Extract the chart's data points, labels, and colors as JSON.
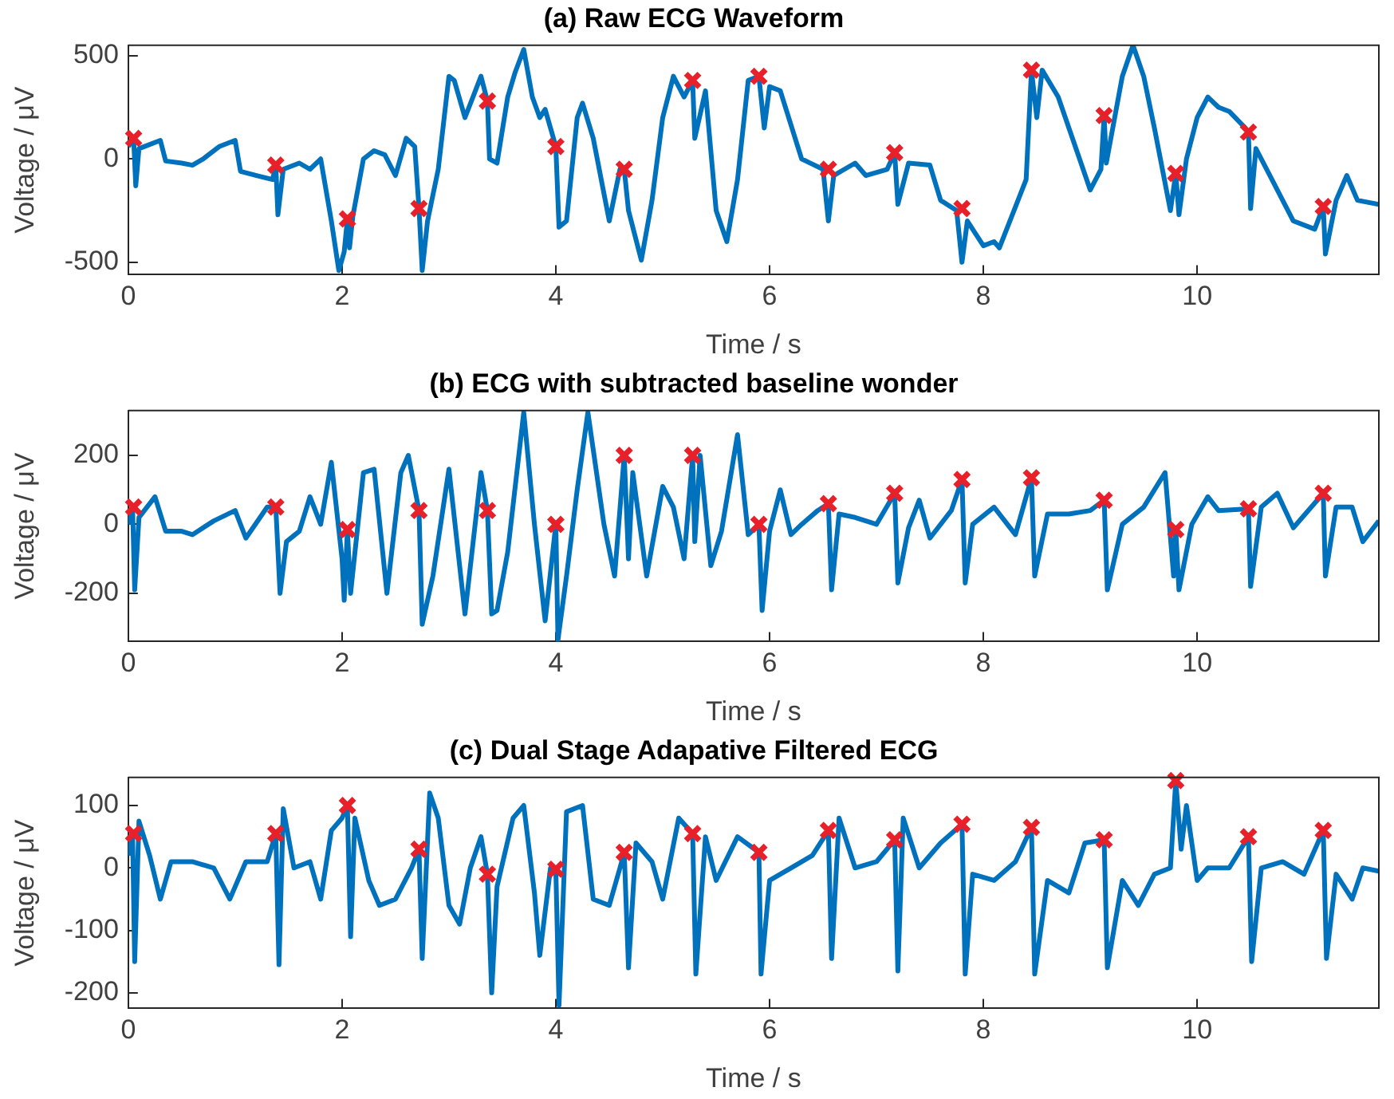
{
  "chart_data": [
    {
      "type": "line",
      "title": "(a) Raw ECG Waveform",
      "xlabel": "Time / s",
      "ylabel": "Voltage / μV",
      "xlim": [
        0,
        11.7
      ],
      "xticks": [
        0,
        2,
        4,
        6,
        8,
        10
      ],
      "ylim": [
        -560,
        550
      ],
      "yticks": [
        -500,
        0,
        500
      ],
      "grid": false,
      "legend": false,
      "series": [
        {
          "type": "line",
          "color": "#0072bd",
          "x": [
            0,
            0.05,
            0.07,
            0.1,
            0.3,
            0.35,
            0.5,
            0.6,
            0.7,
            0.85,
            1.0,
            1.05,
            1.2,
            1.35,
            1.38,
            1.4,
            1.45,
            1.6,
            1.7,
            1.8,
            1.9,
            1.97,
            2.02,
            2.05,
            2.07,
            2.1,
            2.2,
            2.3,
            2.4,
            2.5,
            2.6,
            2.68,
            2.72,
            2.75,
            2.8,
            2.9,
            3.0,
            3.05,
            3.15,
            3.3,
            3.36,
            3.38,
            3.45,
            3.55,
            3.62,
            3.7,
            3.78,
            3.85,
            3.9,
            3.95,
            4.0,
            4.03,
            4.1,
            4.2,
            4.25,
            4.35,
            4.5,
            4.6,
            4.64,
            4.68,
            4.8,
            4.9,
            5.0,
            5.1,
            5.2,
            5.28,
            5.3,
            5.4,
            5.5,
            5.6,
            5.7,
            5.8,
            5.9,
            5.95,
            6.0,
            6.1,
            6.3,
            6.5,
            6.55,
            6.6,
            6.7,
            6.8,
            6.9,
            7.1,
            7.17,
            7.2,
            7.3,
            7.5,
            7.6,
            7.75,
            7.8,
            7.85,
            8.0,
            8.1,
            8.15,
            8.4,
            8.45,
            8.5,
            8.55,
            8.7,
            8.9,
            9.0,
            9.1,
            9.13,
            9.15,
            9.3,
            9.4,
            9.5,
            9.6,
            9.75,
            9.8,
            9.83,
            9.9,
            10.0,
            10.1,
            10.2,
            10.3,
            10.45,
            10.48,
            10.5,
            10.55,
            10.7,
            10.9,
            11.1,
            11.18,
            11.2,
            11.3,
            11.4,
            11.5,
            11.7
          ],
          "values": [
            60,
            100,
            -130,
            50,
            90,
            -10,
            -20,
            -30,
            0,
            60,
            90,
            -60,
            -80,
            -100,
            -30,
            -270,
            -50,
            -20,
            -50,
            0,
            -300,
            -540,
            -450,
            -290,
            -430,
            -280,
            0,
            40,
            20,
            -80,
            100,
            60,
            -240,
            -540,
            -300,
            -50,
            400,
            380,
            200,
            400,
            280,
            0,
            -20,
            300,
            420,
            530,
            300,
            200,
            240,
            150,
            60,
            -330,
            -300,
            200,
            270,
            100,
            -300,
            -50,
            -50,
            -250,
            -490,
            -200,
            200,
            400,
            300,
            380,
            100,
            330,
            -250,
            -400,
            -100,
            380,
            400,
            150,
            350,
            330,
            0,
            -50,
            -300,
            -80,
            -50,
            -20,
            -80,
            -50,
            30,
            -220,
            -20,
            -30,
            -200,
            -250,
            -500,
            -300,
            -420,
            -400,
            -430,
            -100,
            430,
            200,
            430,
            300,
            0,
            -150,
            -50,
            210,
            -20,
            400,
            550,
            400,
            150,
            -250,
            -70,
            -270,
            0,
            200,
            300,
            250,
            230,
            150,
            130,
            -240,
            50,
            -100,
            -300,
            -340,
            -230,
            -460,
            -200,
            -80,
            -200,
            -220
          ]
        },
        {
          "type": "scatter",
          "color": "#e8202a",
          "marker": "cross",
          "x": [
            0.05,
            1.38,
            2.05,
            2.72,
            3.36,
            4.0,
            4.64,
            5.28,
            5.9,
            6.55,
            7.17,
            7.8,
            8.45,
            9.13,
            9.8,
            10.48,
            11.18
          ],
          "values": [
            100,
            -30,
            -290,
            -240,
            280,
            60,
            -50,
            380,
            400,
            -50,
            30,
            -240,
            430,
            210,
            -70,
            130,
            -230
          ]
        }
      ]
    },
    {
      "type": "line",
      "title": "(b) ECG with subtracted baseline wonder",
      "xlabel": "Time / s",
      "ylabel": "Voltage / μV",
      "xlim": [
        0,
        11.7
      ],
      "xticks": [
        0,
        2,
        4,
        6,
        8,
        10
      ],
      "ylim": [
        -340,
        330
      ],
      "yticks": [
        -200,
        0,
        200
      ],
      "grid": false,
      "legend": false,
      "series": [
        {
          "type": "line",
          "color": "#0072bd",
          "x": [
            0,
            0.04,
            0.06,
            0.1,
            0.25,
            0.35,
            0.5,
            0.6,
            0.8,
            1.0,
            1.1,
            1.3,
            1.38,
            1.42,
            1.48,
            1.6,
            1.7,
            1.8,
            1.9,
            2.0,
            2.02,
            2.05,
            2.08,
            2.2,
            2.3,
            2.42,
            2.55,
            2.62,
            2.72,
            2.75,
            2.85,
            3.0,
            3.15,
            3.3,
            3.36,
            3.4,
            3.45,
            3.55,
            3.7,
            3.8,
            3.9,
            4.0,
            4.02,
            4.1,
            4.2,
            4.3,
            4.45,
            4.55,
            4.64,
            4.68,
            4.72,
            4.85,
            5.0,
            5.1,
            5.2,
            5.28,
            5.3,
            5.35,
            5.45,
            5.55,
            5.7,
            5.8,
            5.9,
            5.93,
            6.0,
            6.1,
            6.2,
            6.3,
            6.45,
            6.55,
            6.58,
            6.65,
            6.8,
            7.0,
            7.17,
            7.2,
            7.3,
            7.4,
            7.5,
            7.7,
            7.8,
            7.83,
            7.9,
            8.1,
            8.3,
            8.45,
            8.48,
            8.6,
            8.8,
            9.0,
            9.13,
            9.16,
            9.3,
            9.5,
            9.7,
            9.78,
            9.8,
            9.83,
            9.95,
            10.1,
            10.2,
            10.48,
            10.5,
            10.6,
            10.75,
            10.9,
            11.18,
            11.2,
            11.3,
            11.45,
            11.55,
            11.7
          ],
          "values": [
            0,
            50,
            -190,
            20,
            80,
            -20,
            -20,
            -30,
            10,
            40,
            -40,
            50,
            50,
            -200,
            -50,
            -20,
            80,
            0,
            180,
            -100,
            -220,
            -15,
            -200,
            150,
            160,
            -200,
            150,
            200,
            40,
            -290,
            -150,
            160,
            -260,
            150,
            40,
            -260,
            -250,
            -80,
            325,
            0,
            -280,
            0,
            -335,
            -150,
            100,
            325,
            0,
            -150,
            200,
            -100,
            150,
            -150,
            110,
            50,
            -100,
            200,
            -50,
            200,
            -120,
            -20,
            260,
            -30,
            0,
            -250,
            -20,
            100,
            -30,
            0,
            40,
            60,
            -190,
            30,
            20,
            0,
            90,
            -170,
            -10,
            70,
            -40,
            40,
            130,
            -170,
            0,
            50,
            -30,
            135,
            -150,
            30,
            30,
            40,
            70,
            -190,
            0,
            50,
            150,
            -150,
            -15,
            -190,
            0,
            80,
            40,
            45,
            -180,
            50,
            90,
            -10,
            90,
            -150,
            50,
            50,
            -50,
            10
          ]
        },
        {
          "type": "scatter",
          "color": "#e8202a",
          "marker": "cross",
          "x": [
            0.05,
            1.38,
            2.05,
            2.72,
            3.36,
            4.0,
            4.64,
            5.28,
            5.9,
            6.55,
            7.17,
            7.8,
            8.45,
            9.13,
            9.8,
            10.48,
            11.18
          ],
          "values": [
            50,
            50,
            -15,
            40,
            40,
            0,
            200,
            200,
            0,
            60,
            90,
            130,
            135,
            70,
            -15,
            45,
            90
          ]
        }
      ]
    },
    {
      "type": "line",
      "title": "(c) Dual Stage Adapative Filtered ECG",
      "xlabel": "Time / s",
      "ylabel": "Voltage / μV",
      "xlim": [
        0,
        11.7
      ],
      "xticks": [
        0,
        2,
        4,
        6,
        8,
        10
      ],
      "ylim": [
        -225,
        145
      ],
      "yticks": [
        -200,
        -100,
        0,
        100
      ],
      "grid": false,
      "legend": false,
      "series": [
        {
          "type": "line",
          "color": "#0072bd",
          "x": [
            0,
            0.04,
            0.06,
            0.1,
            0.2,
            0.3,
            0.4,
            0.6,
            0.8,
            0.95,
            1.1,
            1.3,
            1.38,
            1.41,
            1.45,
            1.55,
            1.7,
            1.8,
            1.9,
            2.0,
            2.05,
            2.08,
            2.12,
            2.25,
            2.35,
            2.5,
            2.65,
            2.72,
            2.75,
            2.82,
            2.9,
            3.0,
            3.1,
            3.2,
            3.3,
            3.36,
            3.4,
            3.45,
            3.6,
            3.7,
            3.8,
            3.85,
            3.95,
            4.0,
            4.03,
            4.1,
            4.25,
            4.35,
            4.5,
            4.6,
            4.64,
            4.68,
            4.75,
            4.9,
            5.0,
            5.15,
            5.28,
            5.31,
            5.4,
            5.5,
            5.7,
            5.9,
            5.92,
            6.0,
            6.2,
            6.4,
            6.55,
            6.58,
            6.65,
            6.8,
            7.0,
            7.17,
            7.2,
            7.25,
            7.4,
            7.6,
            7.8,
            7.83,
            7.9,
            8.1,
            8.3,
            8.45,
            8.48,
            8.6,
            8.8,
            8.95,
            9.13,
            9.16,
            9.3,
            9.45,
            9.6,
            9.75,
            9.8,
            9.85,
            9.9,
            10.0,
            10.1,
            10.3,
            10.48,
            10.51,
            10.6,
            10.8,
            11.0,
            11.18,
            11.21,
            11.3,
            11.45,
            11.55,
            11.7
          ],
          "values": [
            20,
            55,
            -150,
            75,
            20,
            -50,
            10,
            10,
            0,
            -50,
            10,
            10,
            55,
            -155,
            95,
            0,
            10,
            -50,
            60,
            80,
            100,
            -110,
            80,
            -20,
            -60,
            -50,
            0,
            30,
            -145,
            120,
            80,
            -60,
            -90,
            0,
            50,
            -10,
            -200,
            -30,
            80,
            100,
            -40,
            -140,
            0,
            -2,
            -220,
            90,
            100,
            -50,
            -60,
            0,
            25,
            -160,
            40,
            10,
            -50,
            80,
            55,
            -170,
            50,
            -20,
            50,
            25,
            -170,
            -20,
            0,
            20,
            60,
            -145,
            80,
            0,
            10,
            45,
            -165,
            80,
            0,
            40,
            70,
            -170,
            -10,
            -20,
            10,
            65,
            -170,
            -20,
            -40,
            40,
            45,
            -160,
            -20,
            -60,
            -10,
            0,
            140,
            30,
            100,
            -20,
            0,
            0,
            50,
            -150,
            0,
            10,
            -10,
            60,
            -145,
            -10,
            -50,
            0,
            -5
          ]
        },
        {
          "type": "scatter",
          "color": "#e8202a",
          "marker": "cross",
          "x": [
            0.05,
            1.38,
            2.05,
            2.72,
            3.36,
            4.0,
            4.64,
            5.28,
            5.9,
            6.55,
            7.17,
            7.8,
            8.45,
            9.13,
            9.8,
            10.48,
            11.18
          ],
          "values": [
            55,
            55,
            100,
            30,
            -10,
            -2,
            25,
            55,
            25,
            60,
            45,
            70,
            65,
            45,
            140,
            50,
            60
          ]
        }
      ]
    }
  ]
}
